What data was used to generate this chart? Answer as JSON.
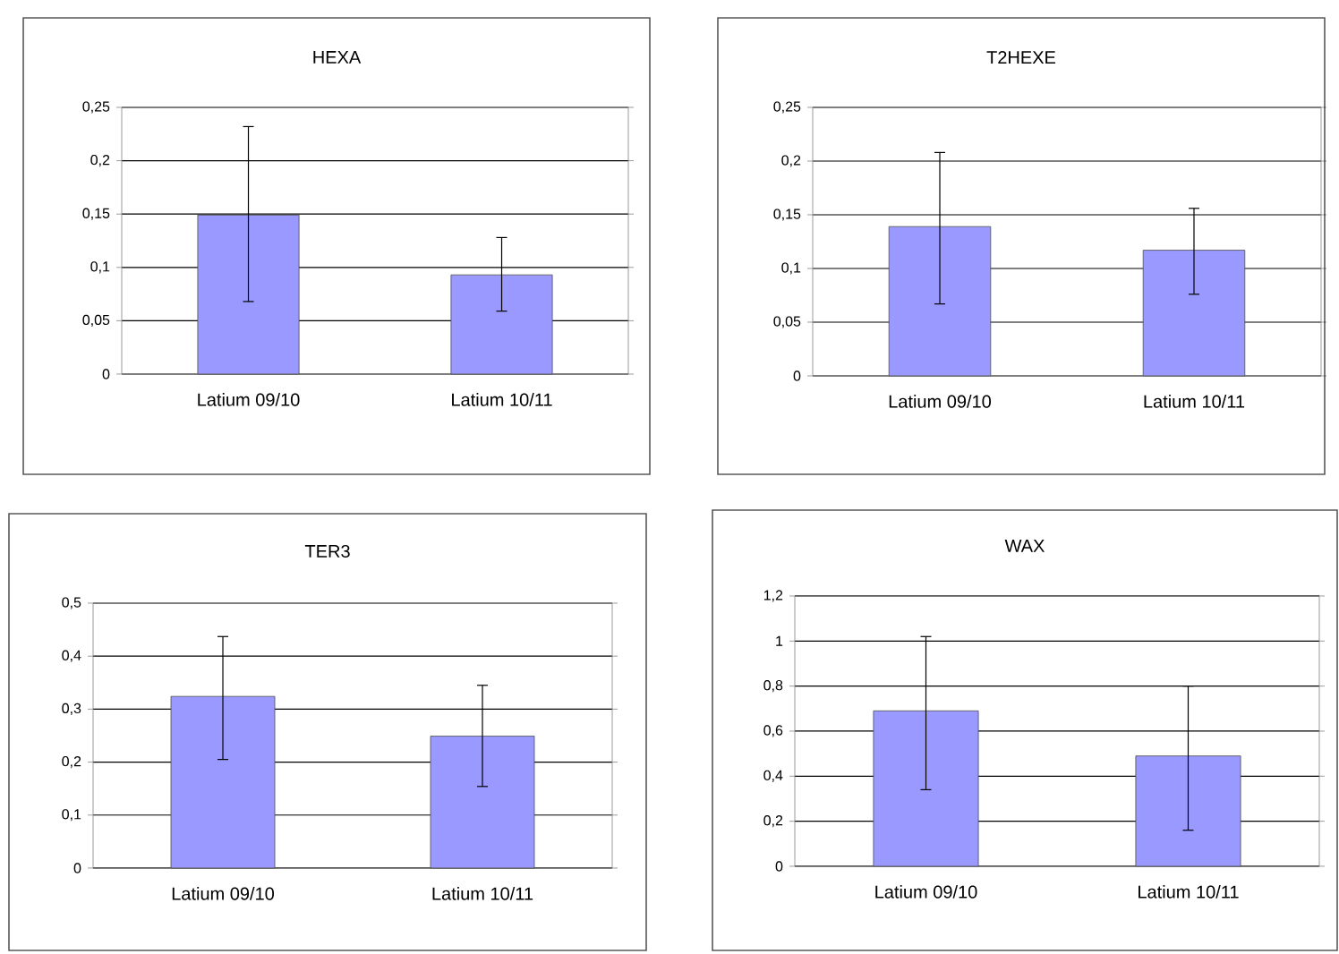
{
  "chart_data": [
    {
      "type": "bar",
      "title": "HEXA",
      "categories": [
        "Latium 09/10",
        "Latium 10/11"
      ],
      "values": [
        0.149,
        0.093
      ],
      "errors": [
        [
          0.068,
          0.232
        ],
        [
          0.059,
          0.128
        ]
      ],
      "color": "#9999ff",
      "ylim": [
        0,
        0.25
      ],
      "yticks": [
        0,
        {
          "value": 0.05,
          "label": "0,05"
        },
        {
          "value": 0.1,
          "label": "0,1"
        },
        {
          "value": 0.15,
          "label": "0,15"
        },
        {
          "value": 0.2,
          "label": "0,2"
        },
        {
          "value": 0.25,
          "label": "0,25"
        }
      ],
      "grid": "y"
    },
    {
      "type": "bar",
      "title": "T2HEXE",
      "categories": [
        "Latium 09/10",
        "Latium 10/11"
      ],
      "values": [
        0.139,
        0.117
      ],
      "errors": [
        [
          0.067,
          0.208
        ],
        [
          0.076,
          0.156
        ]
      ],
      "color": "#9999ff",
      "ylim": [
        0,
        0.25
      ],
      "yticks": [
        0,
        {
          "value": 0.05,
          "label": "0,05"
        },
        {
          "value": 0.1,
          "label": "0,1"
        },
        {
          "value": 0.15,
          "label": "0,15"
        },
        {
          "value": 0.2,
          "label": "0,2"
        },
        {
          "value": 0.25,
          "label": "0,25"
        }
      ],
      "grid": "y"
    },
    {
      "type": "bar",
      "title": "TER3",
      "categories": [
        "Latium 09/10",
        "Latium 10/11"
      ],
      "values": [
        0.324,
        0.249
      ],
      "errors": [
        [
          0.205,
          0.437
        ],
        [
          0.154,
          0.345
        ]
      ],
      "color": "#9999ff",
      "ylim": [
        0,
        0.5
      ],
      "yticks": [
        0,
        {
          "value": 0.1,
          "label": "0,1"
        },
        {
          "value": 0.2,
          "label": "0,2"
        },
        {
          "value": 0.3,
          "label": "0,3"
        },
        {
          "value": 0.4,
          "label": "0,4"
        },
        {
          "value": 0.5,
          "label": "0,5"
        }
      ],
      "grid": "y"
    },
    {
      "type": "bar",
      "title": "WAX",
      "categories": [
        "Latium 09/10",
        "Latium 10/11"
      ],
      "values": [
        0.69,
        0.49
      ],
      "errors": [
        [
          0.34,
          1.02
        ],
        [
          0.16,
          0.8
        ]
      ],
      "color": "#9999ff",
      "ylim": [
        0,
        1.2
      ],
      "yticks": [
        0,
        {
          "value": 0.2,
          "label": "0,2"
        },
        {
          "value": 0.4,
          "label": "0,4"
        },
        {
          "value": 0.6,
          "label": "0,6"
        },
        {
          "value": 0.8,
          "label": "0,8"
        },
        1,
        {
          "value": 1.2,
          "label": "1,2"
        }
      ],
      "grid": "y"
    }
  ]
}
